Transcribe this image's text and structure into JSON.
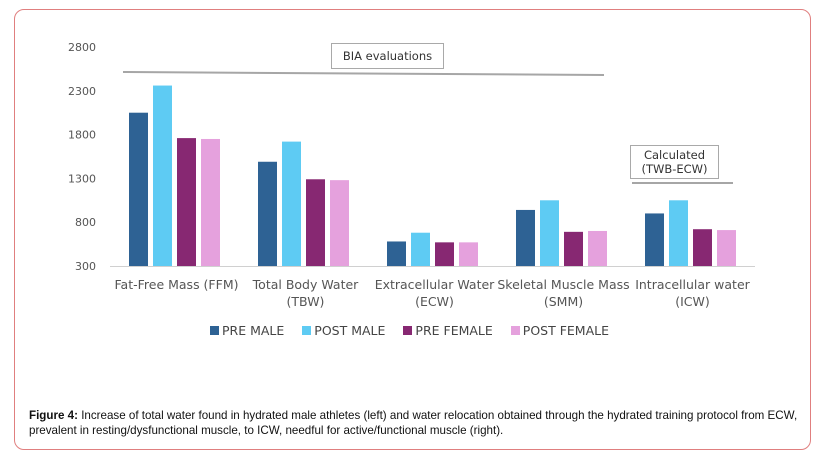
{
  "chart_data": {
    "type": "bar",
    "categories": [
      [
        "Fat-Free Mass (FFM)"
      ],
      [
        "Total Body Water",
        "(TBW)"
      ],
      [
        "Extracellular Water",
        "(ECW)"
      ],
      [
        "Skeletal Muscle Mass",
        "(SMM)"
      ],
      [
        "Intracellular water",
        "(ICW)"
      ]
    ],
    "series": [
      {
        "name": "PRE MALE",
        "color": "#2e6294",
        "values": [
          2050,
          1490,
          580,
          940,
          900
        ]
      },
      {
        "name": "POST MALE",
        "color": "#5ecbf3",
        "values": [
          2360,
          1720,
          680,
          1050,
          1050
        ]
      },
      {
        "name": "PRE FEMALE",
        "color": "#872872",
        "values": [
          1760,
          1290,
          570,
          690,
          720
        ]
      },
      {
        "name": "POST FEMALE",
        "color": "#e5a1dd",
        "values": [
          1750,
          1280,
          570,
          700,
          710
        ]
      }
    ],
    "yticks": [
      300,
      800,
      1300,
      1800,
      2300,
      2800
    ],
    "ylim": [
      300,
      2800
    ],
    "grid": false,
    "legend_position": "bottom",
    "annotations": [
      {
        "lines": [
          "BIA evaluations"
        ]
      },
      {
        "lines": [
          "Calculated",
          "(TWB-ECW)"
        ]
      }
    ]
  },
  "caption": {
    "label": "Figure 4:",
    "text": " Increase of total water found in hydrated male athletes (left) and water relocation obtained through the hydrated training protocol from ECW, prevalent in resting/dysfunctional muscle, to ICW, needful for active/functional muscle (right)."
  }
}
